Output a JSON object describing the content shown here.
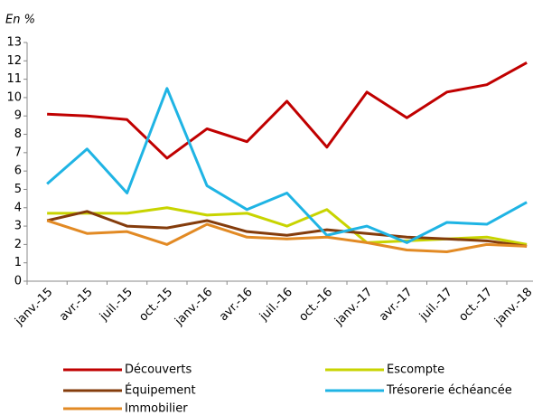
{
  "chart_data": {
    "type": "line",
    "unit_label": "En %",
    "categories": [
      "janv.-15",
      "avr.-15",
      "juil.-15",
      "oct.-15",
      "janv.-16",
      "avr.-16",
      "juil.-16",
      "oct.-16",
      "janv.-17",
      "avr.-17",
      "juil.-17",
      "oct.-17",
      "janv.-18"
    ],
    "series": [
      {
        "name": "Découverts",
        "color": "#c00000",
        "values": [
          9.1,
          9.0,
          8.8,
          6.7,
          8.3,
          7.6,
          9.8,
          7.3,
          10.3,
          8.9,
          10.3,
          10.7,
          11.9
        ]
      },
      {
        "name": "Escompte",
        "color": "#c8d400",
        "values": [
          3.7,
          3.7,
          3.7,
          4.0,
          3.6,
          3.7,
          3.0,
          3.9,
          2.1,
          2.2,
          2.3,
          2.4,
          2.0
        ]
      },
      {
        "name": "Équipement",
        "color": "#843c0c",
        "values": [
          3.3,
          3.8,
          3.0,
          2.9,
          3.3,
          2.7,
          2.5,
          2.8,
          2.6,
          2.4,
          2.3,
          2.2,
          1.9
        ]
      },
      {
        "name": "Trésorerie échéancée",
        "color": "#1fb4e4",
        "values": [
          5.3,
          7.2,
          4.8,
          10.5,
          5.2,
          3.9,
          4.8,
          2.5,
          3.0,
          2.1,
          3.2,
          3.1,
          4.3
        ]
      },
      {
        "name": "Immobilier",
        "color": "#e28a24",
        "values": [
          3.3,
          2.6,
          2.7,
          2.0,
          3.1,
          2.4,
          2.3,
          2.4,
          2.1,
          1.7,
          1.6,
          2.0,
          1.9
        ]
      }
    ],
    "ylim": [
      0,
      13
    ],
    "yticks": [
      0,
      1,
      2,
      3,
      4,
      5,
      6,
      7,
      8,
      9,
      10,
      11,
      12,
      13
    ],
    "grid": false
  }
}
